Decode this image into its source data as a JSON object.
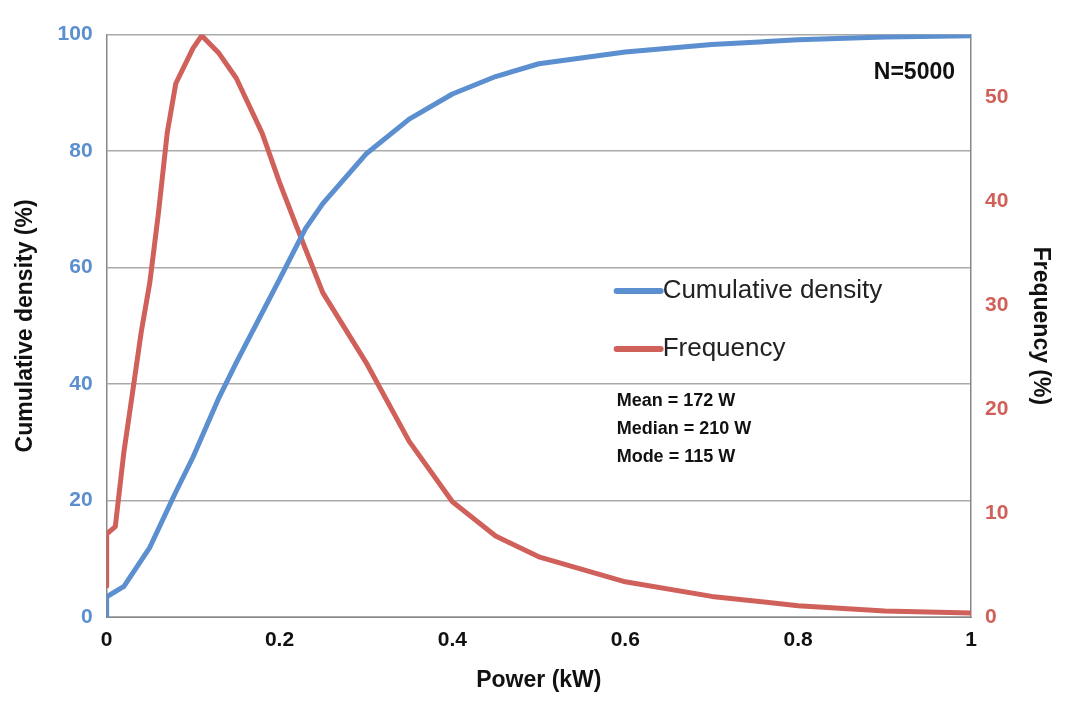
{
  "chart_data": {
    "type": "line",
    "xlabel": "Power (kW)",
    "ylabel": "Cumulative density (%)",
    "y2label": "Frequency (%)",
    "xlim": [
      0,
      1
    ],
    "xticks": [
      0,
      0.2,
      0.4,
      0.6,
      0.8,
      1
    ],
    "ylim": [
      0,
      100
    ],
    "yticks": [
      0,
      20,
      40,
      60,
      80,
      100
    ],
    "y2lim": [
      0,
      56
    ],
    "y2ticks": [
      0,
      10,
      20,
      30,
      40,
      50
    ],
    "grid": "y",
    "legend": "right",
    "marker": "none",
    "line_style": "solid",
    "annotations": [
      "N=5000",
      "Mean = 172 W",
      "Median = 210 W",
      "Mode = 115 W"
    ],
    "series": [
      {
        "name": "Cumulative density",
        "color": "#5b8fcf",
        "x": [
          0,
          0,
          0.02,
          0.05,
          0.08,
          0.1,
          0.13,
          0.15,
          0.2,
          0.23,
          0.25,
          0.3,
          0.35,
          0.4,
          0.45,
          0.5,
          0.6,
          0.7,
          0.8,
          0.9,
          1
        ],
        "values": [
          0,
          3.5,
          5.3,
          12,
          21.5,
          27.5,
          37.7,
          43.7,
          58,
          66.7,
          71,
          79.5,
          85.5,
          89.8,
          92.8,
          95,
          97,
          98.3,
          99.1,
          99.6,
          99.8
        ]
      },
      {
        "name": "Frequency",
        "color": "#d0605a",
        "axis": "y2",
        "x": [
          0,
          0,
          0.01,
          0.02,
          0.03,
          0.04,
          0.05,
          0.06,
          0.07,
          0.08,
          0.1,
          0.11,
          0.13,
          0.15,
          0.18,
          0.2,
          0.22,
          0.25,
          0.3,
          0.35,
          0.4,
          0.45,
          0.5,
          0.6,
          0.7,
          0.8,
          0.9,
          1
        ],
        "values": [
          3,
          8,
          8.7,
          15.9,
          21.6,
          27.4,
          32.2,
          38.9,
          46.5,
          51.3,
          54.7,
          55.9,
          54.2,
          51.8,
          46.5,
          41.8,
          37.5,
          31.2,
          24.5,
          16.9,
          11.1,
          7.8,
          5.8,
          3.4,
          2,
          1.1,
          0.6,
          0.4
        ]
      }
    ]
  }
}
